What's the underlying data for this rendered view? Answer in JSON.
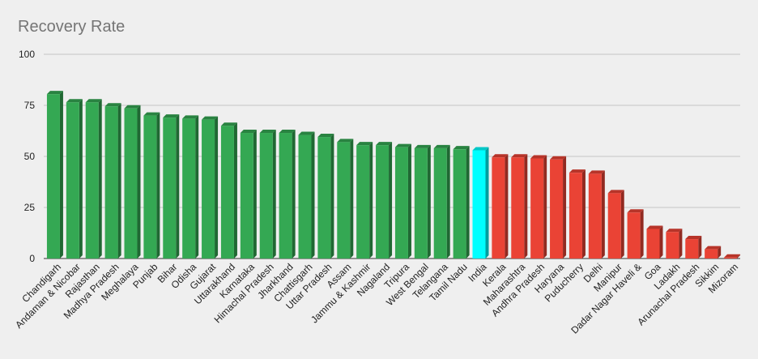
{
  "chart_data": {
    "type": "bar",
    "title": "Recovery Rate",
    "ylim": [
      0,
      100
    ],
    "yticks": [
      0,
      25,
      50,
      75,
      100
    ],
    "grid": true,
    "categories": [
      "Chandigarh",
      "Andaman & Nicobar",
      "Rajasthan",
      "Madhya Pradesh",
      "Meghalaya",
      "Punjab",
      "Bihar",
      "Odisha",
      "Gujarat",
      "Uttarakhand",
      "Karnataka",
      "Himachal Pradesh",
      "Jharkhand",
      "Chattisgarh",
      "Uttar Pradesh",
      "Assam",
      "Jammu & Kashmir",
      "Nagaland",
      "Tripura",
      "West Bengal",
      "Telangana",
      "Tamil Nadu",
      "India",
      "Kerala",
      "Maharashtra",
      "Andhra Pradesh",
      "Haryana",
      "Puducherry",
      "Delhi",
      "Manipur",
      "Dadar Nagar Haveli &",
      "Goa",
      "Ladakh",
      "Arunachal Pradesh",
      "Sikkim",
      "Mizoram"
    ],
    "values": [
      80.5,
      76.5,
      76.5,
      74.5,
      73.5,
      70,
      69,
      68.5,
      68,
      65,
      61.5,
      61.5,
      61.5,
      60.5,
      59.5,
      57,
      55.5,
      55.5,
      54.5,
      54,
      54,
      53.5,
      53,
      49.5,
      49.5,
      49,
      48.5,
      42,
      41.5,
      32,
      22.5,
      14.5,
      13,
      9.5,
      4.5,
      0.5
    ],
    "colors": {
      "above_india": "#34a853",
      "india": "#00ffff",
      "below_india": "#ea4335"
    }
  }
}
